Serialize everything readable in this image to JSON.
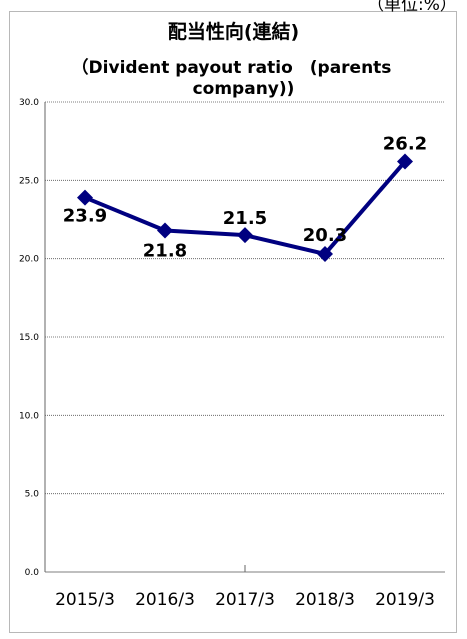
{
  "header": {
    "unit_fragment": "（単位:%）"
  },
  "chart_data": {
    "type": "line",
    "title": "配当性向(連結)",
    "subtitle_line1": "（Divident payout ratio　(parents",
    "subtitle_line2": "company))",
    "categories": [
      "2015/3",
      "2016/3",
      "2017/3",
      "2018/3",
      "2019/3"
    ],
    "series": [
      {
        "values": [
          23.9,
          21.8,
          21.5,
          20.3,
          26.2
        ],
        "color": "#000080"
      }
    ],
    "data_labels": [
      "23.9",
      "21.8",
      "21.5",
      "20.3",
      "26.2"
    ],
    "ylim": [
      0,
      30
    ],
    "y_ticks": [
      "0.0",
      "5.0",
      "10.0",
      "15.0",
      "20.0",
      "25.0",
      "30.0"
    ],
    "grid": true,
    "legend": false
  }
}
